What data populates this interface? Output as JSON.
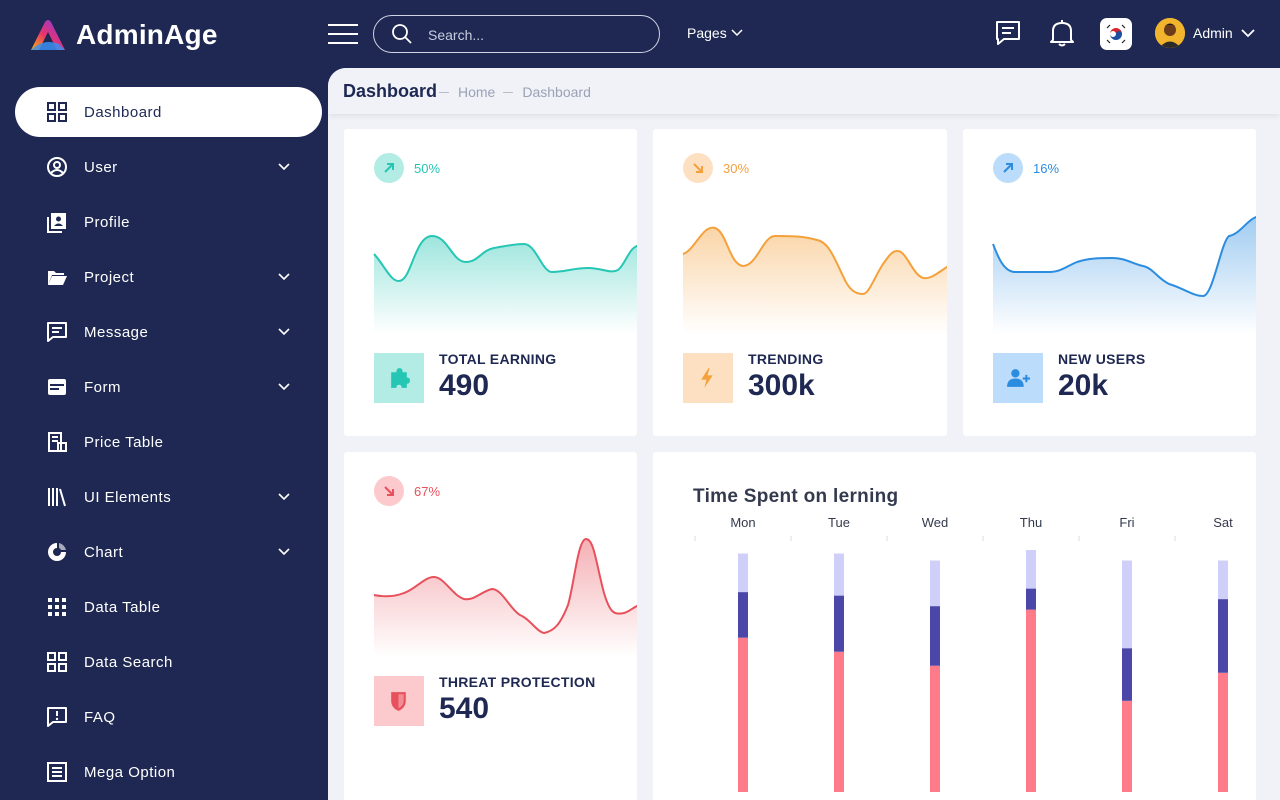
{
  "brand": {
    "name": "AdminAge"
  },
  "sidebar": {
    "items": [
      {
        "label": "Dashboard",
        "icon": "grid-icon",
        "active": true,
        "chevron": false
      },
      {
        "label": "User",
        "icon": "user-circle-icon",
        "active": false,
        "chevron": true
      },
      {
        "label": "Profile",
        "icon": "profile-card-icon",
        "active": false,
        "chevron": false
      },
      {
        "label": "Project",
        "icon": "folder-open-icon",
        "active": false,
        "chevron": true
      },
      {
        "label": "Message",
        "icon": "message-icon",
        "active": false,
        "chevron": true
      },
      {
        "label": "Form",
        "icon": "form-card-icon",
        "active": false,
        "chevron": true
      },
      {
        "label": "Price Table",
        "icon": "price-table-icon",
        "active": false,
        "chevron": false
      },
      {
        "label": "UI Elements",
        "icon": "library-icon",
        "active": false,
        "chevron": true
      },
      {
        "label": "Chart",
        "icon": "donut-chart-icon",
        "active": false,
        "chevron": true
      },
      {
        "label": "Data Table",
        "icon": "dots-grid-icon",
        "active": false,
        "chevron": false
      },
      {
        "label": "Data Search",
        "icon": "grid-icon",
        "active": false,
        "chevron": false
      },
      {
        "label": "FAQ",
        "icon": "faq-icon",
        "active": false,
        "chevron": false
      },
      {
        "label": "Mega Option",
        "icon": "list-box-icon",
        "active": false,
        "chevron": false
      }
    ]
  },
  "topbar": {
    "search_placeholder": "Search...",
    "pages_label": "Pages",
    "admin_name": "Admin",
    "icons": [
      "menu-icon",
      "search-icon",
      "chat-icon",
      "bell-icon",
      "korea-flag-icon",
      "chevron-down-icon"
    ]
  },
  "page": {
    "title": "Dashboard",
    "breadcrumbs": [
      "Home",
      "Dashboard"
    ]
  },
  "stats": [
    {
      "percent": "50%",
      "trend": "up",
      "label": "TOTAL EARNING",
      "value": "490",
      "icon": "puzzle-icon",
      "color": "#26c6b4",
      "soft": "#b3ece5"
    },
    {
      "percent": "30%",
      "trend": "down",
      "label": "TRENDING",
      "value": "300k",
      "icon": "bolt-icon",
      "color": "#f4a13c",
      "soft": "#fde0c2"
    },
    {
      "percent": "16%",
      "trend": "up",
      "label": "NEW USERS",
      "value": "20k",
      "icon": "add-user-icon",
      "color": "#2c8de0",
      "soft": "#bcdcfb"
    },
    {
      "percent": "67%",
      "trend": "down",
      "label": "THREAT PROTECTION",
      "value": "540",
      "icon": "shield-icon",
      "color": "#e8505b",
      "soft": "#fcc9cd"
    }
  ],
  "chart_data": {
    "type": "bar",
    "stacked": true,
    "title": "Time Spent on lerning",
    "categories": [
      "Mon",
      "Tue",
      "Wed",
      "Thu",
      "Fri",
      "Sat"
    ],
    "series": [
      {
        "color": "#ff7b8a",
        "values": [
          44,
          40,
          36,
          52,
          26,
          34
        ]
      },
      {
        "color": "#4b47a8",
        "values": [
          13,
          16,
          17,
          6,
          15,
          21
        ]
      },
      {
        "color": "#cfcffa",
        "values": [
          11,
          12,
          13,
          11,
          25,
          11
        ]
      }
    ]
  }
}
